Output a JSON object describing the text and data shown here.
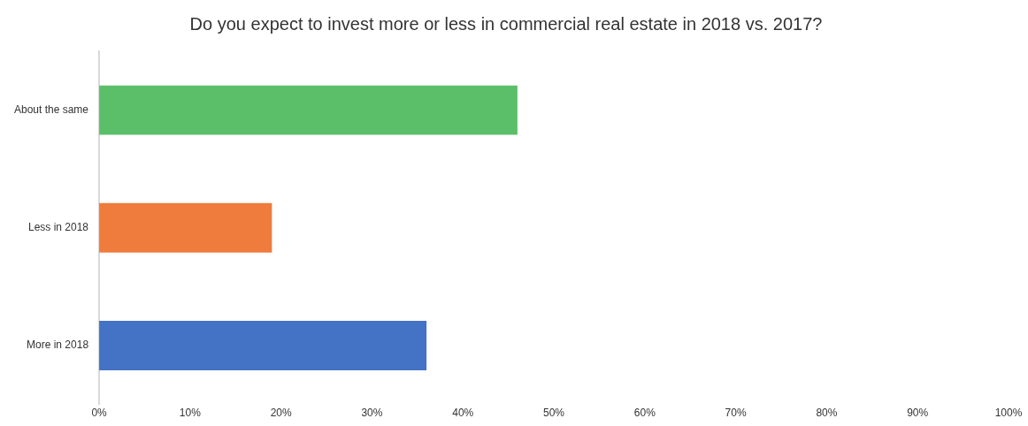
{
  "chart_data": {
    "type": "bar",
    "orientation": "horizontal",
    "title": "Do you expect to invest more or less in commercial real estate in 2018 vs. 2017?",
    "categories": [
      "About the same",
      "Less in 2018",
      "More in 2018"
    ],
    "values": [
      46,
      19,
      36
    ],
    "colors": [
      "#5bbf6a",
      "#ef7b3d",
      "#4472c4"
    ],
    "xlim": [
      0,
      100
    ],
    "xticks": [
      {
        "value": 0,
        "label": "0%"
      },
      {
        "value": 10,
        "label": "10%"
      },
      {
        "value": 20,
        "label": "20%"
      },
      {
        "value": 30,
        "label": "30%"
      },
      {
        "value": 40,
        "label": "40%"
      },
      {
        "value": 50,
        "label": "50%"
      },
      {
        "value": 60,
        "label": "60%"
      },
      {
        "value": 70,
        "label": "70%"
      },
      {
        "value": 80,
        "label": "80%"
      },
      {
        "value": 90,
        "label": "90%"
      },
      {
        "value": 100,
        "label": "100%"
      }
    ],
    "grid": false,
    "legend": false
  }
}
